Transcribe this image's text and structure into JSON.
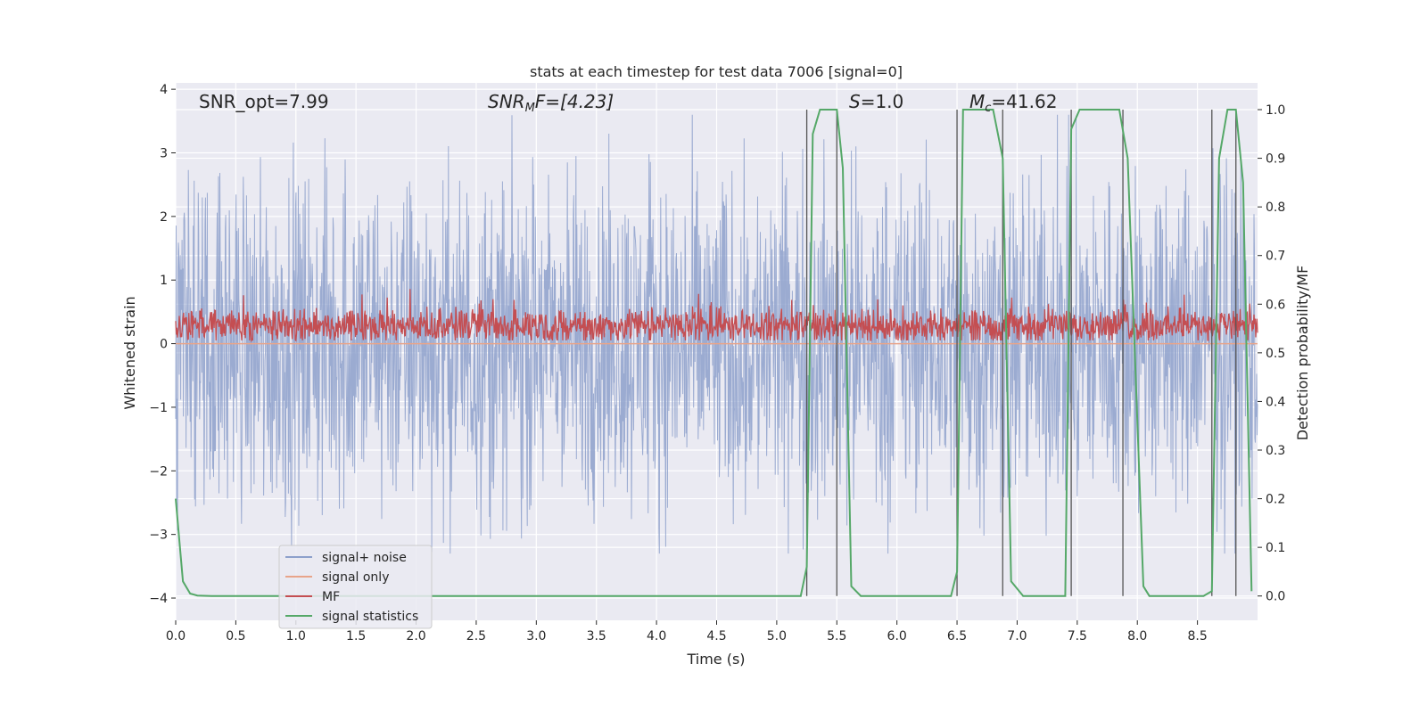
{
  "chart_data": {
    "type": "line",
    "title": "stats at each timestep for test data 7006 [signal=0]",
    "xlabel": "Time (s)",
    "ylabel_left": "Whitened strain",
    "ylabel_right": "Detection probability/MF",
    "xlim": [
      0.0,
      9.0
    ],
    "ylim_left": [
      -4.35,
      4.1
    ],
    "ylim_right": [
      -0.05,
      1.055
    ],
    "x_ticks": [
      "0.0",
      "0.5",
      "1.0",
      "1.5",
      "2.0",
      "2.5",
      "3.0",
      "3.5",
      "4.0",
      "4.5",
      "5.0",
      "5.5",
      "6.0",
      "6.5",
      "7.0",
      "7.5",
      "8.0",
      "8.5"
    ],
    "y_ticks_left": [
      "4",
      "3",
      "2",
      "1",
      "0",
      "−1",
      "−2",
      "−3",
      "−4"
    ],
    "y_ticks_right": [
      "1.0",
      "0.9",
      "0.8",
      "0.7",
      "0.6",
      "0.5",
      "0.4",
      "0.3",
      "0.2",
      "0.1",
      "0.0"
    ],
    "annotations": {
      "snr_opt": "SNR_opt=7.99",
      "snr_mf_prefix": "SNR",
      "snr_mf_sub": "M",
      "snr_mf_rest": "F=[4.23]",
      "s_symbol": "S",
      "s_value": "=1.0",
      "mc_symbol": "M",
      "mc_sub": "c",
      "mc_value": "=41.62"
    },
    "series": [
      {
        "name": "signal+ noise",
        "color": "#8da0cb",
        "range": [
          -3.3,
          3.6
        ]
      },
      {
        "name": "signal only",
        "color": "#e8a48a",
        "values_constant": 0.0
      },
      {
        "name": "MF",
        "color": "#c44e52",
        "range": [
          0.0,
          0.9
        ]
      },
      {
        "name": "signal statistics",
        "color": "#55a868",
        "x": [
          0.0,
          0.06,
          0.12,
          0.18,
          0.3,
          0.6,
          1.0,
          5.2,
          5.25,
          5.3,
          5.36,
          5.5,
          5.55,
          5.62,
          5.7,
          6.45,
          6.5,
          6.55,
          6.6,
          6.8,
          6.88,
          6.95,
          7.05,
          7.4,
          7.45,
          7.52,
          7.85,
          7.92,
          8.05,
          8.1,
          8.55,
          8.62,
          8.68,
          8.75,
          8.82,
          8.88,
          8.95
        ],
        "y": [
          0.2,
          0.03,
          0.005,
          0.001,
          0.0,
          0.0,
          0.0,
          0.0,
          0.06,
          0.95,
          1.0,
          1.0,
          0.88,
          0.02,
          0.0,
          0.0,
          0.05,
          1.0,
          1.0,
          1.0,
          0.9,
          0.03,
          0.0,
          0.0,
          0.96,
          1.0,
          1.0,
          0.9,
          0.02,
          0.0,
          0.0,
          0.01,
          0.9,
          1.0,
          1.0,
          0.85,
          0.01
        ]
      }
    ],
    "vertical_lines": [
      5.25,
      5.5,
      6.5,
      6.88,
      7.45,
      7.88,
      8.62,
      8.82
    ],
    "legend_location": "lower-left"
  }
}
